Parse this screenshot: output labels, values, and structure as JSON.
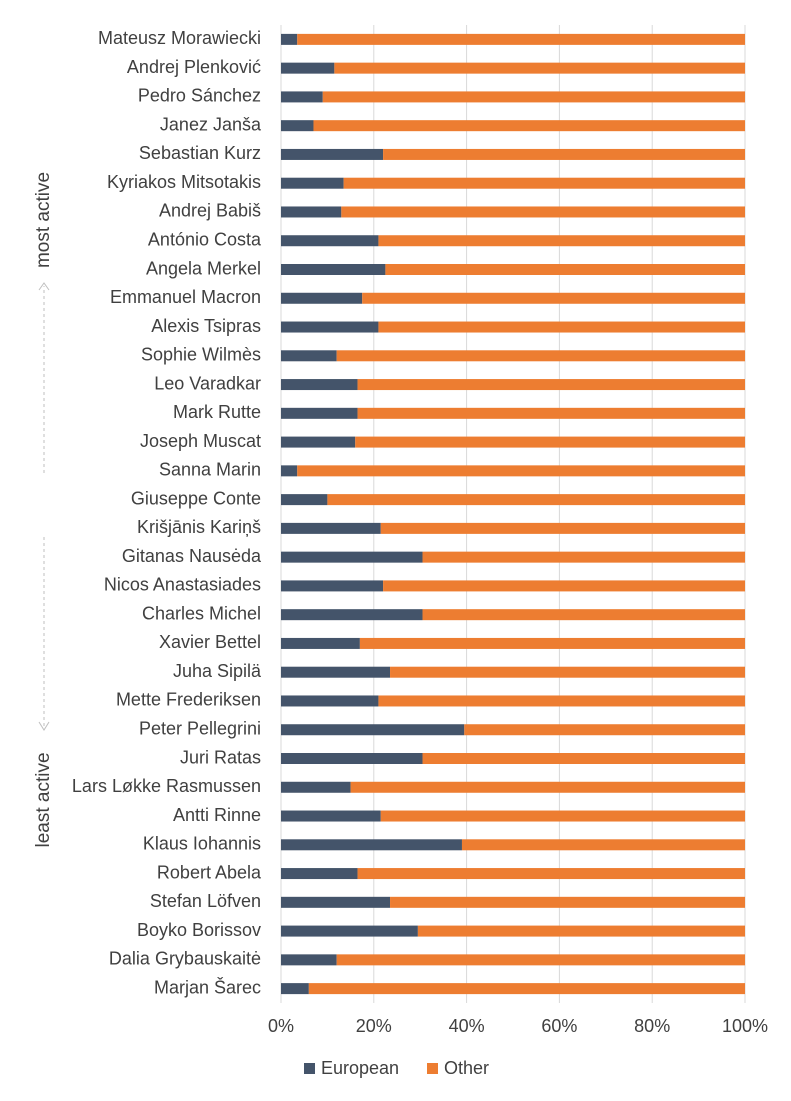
{
  "chart_data": {
    "type": "bar",
    "orientation": "horizontal",
    "stacked": "percent",
    "categories": [
      "Mateusz Morawiecki",
      "Andrej Plenković",
      "Pedro Sánchez",
      "Janez Janša",
      "Sebastian Kurz",
      "Kyriakos Mitsotakis",
      "Andrej Babiš",
      "António Costa",
      "Angela Merkel",
      "Emmanuel Macron",
      "Alexis Tsipras",
      "Sophie Wilmès",
      "Leo Varadkar",
      "Mark Rutte",
      "Joseph Muscat",
      "Sanna Marin",
      "Giuseppe Conte",
      "Krišjānis Kariņš",
      "Gitanas Nausėda",
      "Nicos Anastasiades",
      "Charles Michel",
      "Xavier Bettel",
      "Juha Sipilä",
      "Mette Frederiksen",
      "Peter Pellegrini",
      "Juri Ratas",
      "Lars Løkke Rasmussen",
      "Antti Rinne",
      "Klaus Iohannis",
      "Robert Abela",
      "Stefan Löfven",
      "Boyko Borissov",
      "Dalia Grybauskaitė",
      "Marjan Šarec"
    ],
    "series": [
      {
        "name": "European",
        "color": "#44546a",
        "values": [
          3.5,
          11.5,
          9,
          7,
          22,
          13.5,
          13,
          21,
          22.5,
          17.5,
          21,
          12,
          16.5,
          16.5,
          16,
          3.5,
          10,
          21.5,
          30.5,
          22,
          30.5,
          17,
          23.5,
          21,
          39.5,
          30.5,
          15,
          21.5,
          39,
          16.5,
          23.5,
          29.5,
          12,
          6
        ]
      },
      {
        "name": "Other",
        "color": "#ed7d31",
        "values": [
          96.5,
          88.5,
          91,
          93,
          78,
          86.5,
          87,
          79,
          77.5,
          82.5,
          79,
          88,
          83.5,
          83.5,
          84,
          96.5,
          90,
          78.5,
          69.5,
          78,
          69.5,
          83,
          76.5,
          79,
          60.5,
          69.5,
          85,
          78.5,
          61,
          83.5,
          76.5,
          70.5,
          88,
          94
        ]
      }
    ],
    "x_ticks": [
      "0%",
      "20%",
      "40%",
      "60%",
      "80%",
      "100%"
    ],
    "xlim": [
      0,
      100
    ],
    "grid": true,
    "legend": "bottom",
    "annotations": {
      "top_label": "most active",
      "bottom_label": "least active"
    },
    "gridline_color": "#d9d9d9",
    "text_color": "#404040",
    "arrow_color": "#bfbfbf"
  }
}
